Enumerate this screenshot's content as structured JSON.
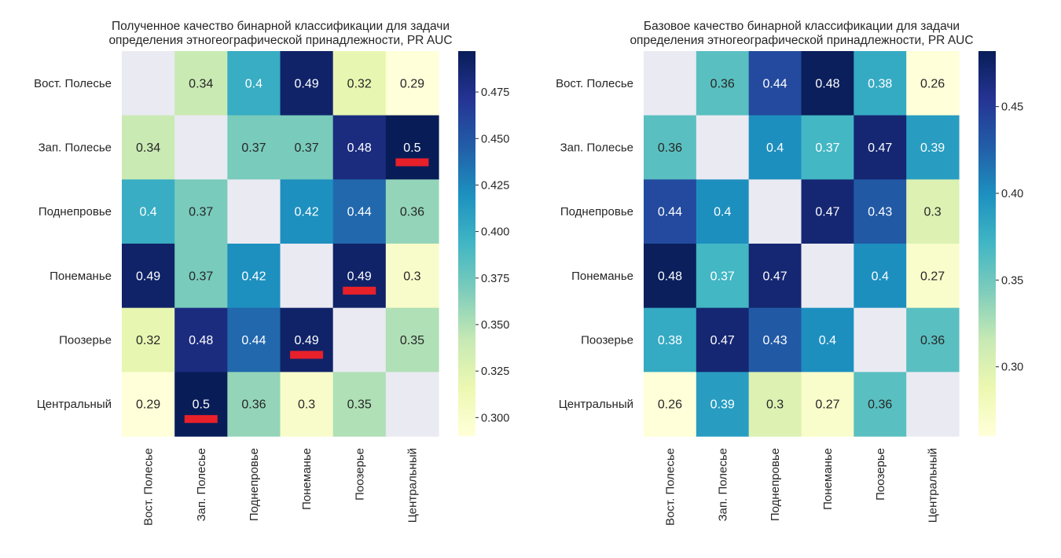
{
  "chart_data": [
    {
      "type": "heatmap",
      "title_lines": [
        "Полученное качество бинарной классификации для задачи",
        "определения этногеографической принадлежности, PR AUC"
      ],
      "rows": [
        "Вост. Полесье",
        "Зап. Полесье",
        "Поднепровье",
        "Понеманье",
        "Поозерье",
        "Центральный"
      ],
      "cols": [
        "Вост. Полесье",
        "Зап. Полесье",
        "Поднепровье",
        "Понеманье",
        "Поозерье",
        "Центральный"
      ],
      "values": [
        [
          null,
          0.34,
          0.4,
          0.49,
          0.32,
          0.29
        ],
        [
          0.34,
          null,
          0.37,
          0.37,
          0.48,
          0.5
        ],
        [
          0.4,
          0.37,
          null,
          0.42,
          0.44,
          0.36
        ],
        [
          0.49,
          0.37,
          0.42,
          null,
          0.49,
          0.3
        ],
        [
          0.32,
          0.48,
          0.44,
          0.49,
          null,
          0.35
        ],
        [
          0.29,
          0.5,
          0.36,
          0.3,
          0.35,
          null
        ]
      ],
      "labels": [
        [
          "",
          "0.34",
          "0.4",
          "0.49",
          "0.32",
          "0.29"
        ],
        [
          "0.34",
          "",
          "0.37",
          "0.37",
          "0.48",
          "0.5"
        ],
        [
          "0.4",
          "0.37",
          "",
          "0.42",
          "0.44",
          "0.36"
        ],
        [
          "0.49",
          "0.37",
          "0.42",
          "",
          "0.49",
          "0.3"
        ],
        [
          "0.32",
          "0.48",
          "0.44",
          "0.49",
          "",
          "0.35"
        ],
        [
          "0.29",
          "0.5",
          "0.36",
          "0.3",
          "0.35",
          ""
        ]
      ],
      "colorbar": {
        "range": [
          0.29,
          0.497
        ],
        "ticks": [
          0.3,
          0.325,
          0.35,
          0.375,
          0.4,
          0.425,
          0.45,
          0.475
        ],
        "tick_labels": [
          "0.300",
          "0.325",
          "0.350",
          "0.375",
          "0.400",
          "0.425",
          "0.450",
          "0.475"
        ]
      },
      "colormap": "YlGnBu",
      "missing_color": "#eaeaf2",
      "highlight_color": "#e8202a",
      "highlighted_cells": [
        [
          1,
          5
        ],
        [
          3,
          4
        ],
        [
          4,
          3
        ],
        [
          5,
          1
        ]
      ]
    },
    {
      "type": "heatmap",
      "title_lines": [
        "Базовое качество бинарной классификации для задачи",
        "определения этногеографической принадлежности, PR AUC"
      ],
      "rows": [
        "Вост. Полесье",
        "Зап. Полесье",
        "Поднепровье",
        "Понеманье",
        "Поозерье",
        "Центральный"
      ],
      "cols": [
        "Вост. Полесье",
        "Зап. Полесье",
        "Поднепровье",
        "Понеманье",
        "Поозерье",
        "Центральный"
      ],
      "values": [
        [
          null,
          0.36,
          0.44,
          0.48,
          0.38,
          0.26
        ],
        [
          0.36,
          null,
          0.4,
          0.37,
          0.47,
          0.39
        ],
        [
          0.44,
          0.4,
          null,
          0.47,
          0.43,
          0.3
        ],
        [
          0.48,
          0.37,
          0.47,
          null,
          0.4,
          0.27
        ],
        [
          0.38,
          0.47,
          0.43,
          0.4,
          null,
          0.36
        ],
        [
          0.26,
          0.39,
          0.3,
          0.27,
          0.36,
          null
        ]
      ],
      "labels": [
        [
          "",
          "0.36",
          "0.44",
          "0.48",
          "0.38",
          "0.26"
        ],
        [
          "0.36",
          "",
          "0.4",
          "0.37",
          "0.47",
          "0.39"
        ],
        [
          "0.44",
          "0.4",
          "",
          "0.47",
          "0.43",
          "0.3"
        ],
        [
          "0.48",
          "0.37",
          "0.47",
          "",
          "0.4",
          "0.27"
        ],
        [
          "0.38",
          "0.47",
          "0.43",
          "0.4",
          "",
          "0.36"
        ],
        [
          "0.26",
          "0.39",
          "0.3",
          "0.27",
          "0.36",
          ""
        ]
      ],
      "colorbar": {
        "range": [
          0.26,
          0.482
        ],
        "ticks": [
          0.3,
          0.35,
          0.4,
          0.45
        ],
        "tick_labels": [
          "0.30",
          "0.35",
          "0.40",
          "0.45"
        ]
      },
      "colormap": "YlGnBu",
      "missing_color": "#eaeaf2",
      "highlighted_cells": []
    }
  ]
}
